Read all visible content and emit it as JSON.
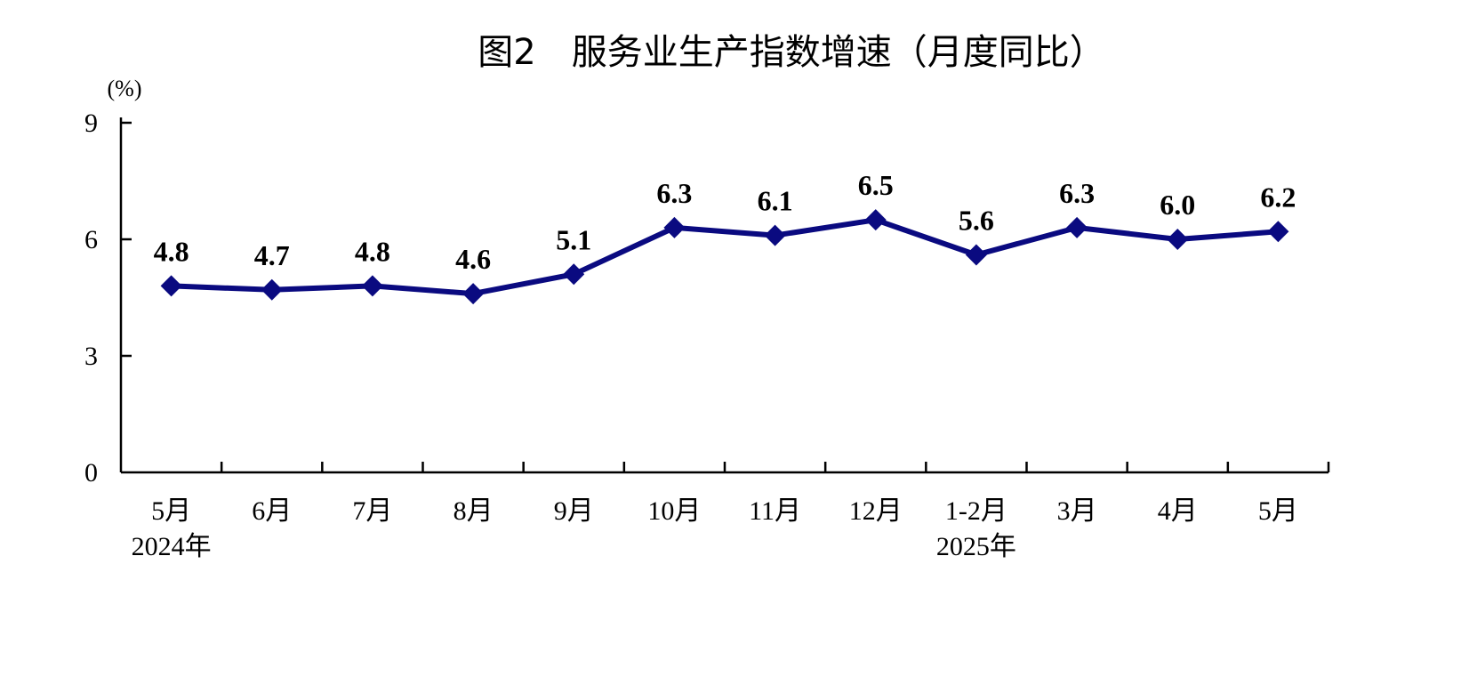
{
  "chart_data": {
    "type": "line",
    "title": "图2　服务业生产指数增速（月度同比）",
    "ylabel": "(%)",
    "xlabel": "",
    "categories": [
      "5月",
      "6月",
      "7月",
      "8月",
      "9月",
      "10月",
      "11月",
      "12月",
      "1-2月",
      "3月",
      "4月",
      "5月"
    ],
    "year_labels": [
      {
        "category_index": 0,
        "text": "2024年"
      },
      {
        "category_index": 8,
        "text": "2025年"
      }
    ],
    "series": [
      {
        "values": [
          4.8,
          4.7,
          4.8,
          4.6,
          5.1,
          6.3,
          6.1,
          6.5,
          5.6,
          6.3,
          6.0,
          6.2
        ],
        "color": "#0a0a80"
      }
    ],
    "data_labels": [
      "4.8",
      "4.7",
      "4.8",
      "4.6",
      "5.1",
      "6.3",
      "6.1",
      "6.5",
      "5.6",
      "6.3",
      "6.0",
      "6.2"
    ],
    "yticks": [
      0,
      3,
      6,
      9
    ],
    "ylim": [
      0,
      9
    ],
    "grid": false,
    "legend": "none"
  }
}
